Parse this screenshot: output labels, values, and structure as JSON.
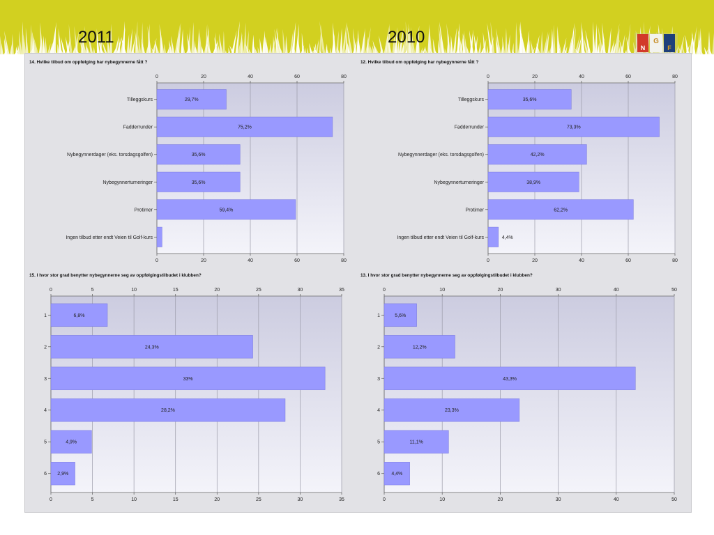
{
  "header": {
    "year_left": "2011",
    "year_right": "2010",
    "logo_letters": [
      "N",
      "G",
      "F"
    ]
  },
  "colors": {
    "banner": "#d2d020",
    "panel_bg": "#e2e2e6",
    "plot_top": "#cccce0",
    "plot_bottom": "#f4f4fa",
    "bar_fill": "#9999ff",
    "bar_stroke": "#7777dd",
    "grid": "#9a9aa8"
  },
  "chart_data": [
    {
      "type": "bar",
      "orientation": "horizontal",
      "title": "14. Hvilke tilbud om oppfølging har nybegynnerne fått ?",
      "categories": [
        "Tilleggskurs",
        "Fadderrunder",
        "Nybegynnerdager (eks. torsdagsgolfen)",
        "Nybegynnerturneringer",
        "Protimer",
        "Ingen tilbud etter endt Veien til Golf-kurs"
      ],
      "values": [
        29.7,
        75.2,
        35.6,
        35.6,
        59.4,
        2.2
      ],
      "labels": [
        "29,7%",
        "75,2%",
        "35,6%",
        "35,6%",
        "59,4%",
        ""
      ],
      "xlim": [
        0,
        80
      ],
      "ticks": [
        0,
        20,
        40,
        60,
        80
      ],
      "grid": true
    },
    {
      "type": "bar",
      "orientation": "horizontal",
      "title": "12. Hvilke tilbud om oppfølging har nybegynnerne fått ?",
      "categories": [
        "Tilleggskurs",
        "Fadderrunder",
        "Nybegynnerdager (eks. torsdagsgolfen)",
        "Nybegynnerturneringer",
        "Protimer",
        "Ingen tilbud etter endt Veien til Golf-kurs"
      ],
      "values": [
        35.6,
        73.3,
        42.2,
        38.9,
        62.2,
        4.4
      ],
      "labels": [
        "35,6%",
        "73,3%",
        "42,2%",
        "38,9%",
        "62,2%",
        "4,4%"
      ],
      "xlim": [
        0,
        80
      ],
      "ticks": [
        0,
        20,
        40,
        60,
        80
      ],
      "grid": true
    },
    {
      "type": "bar",
      "orientation": "horizontal",
      "title": "15. I hvor stor grad benytter nybegynnerne seg av oppfølgingstilbudet i klubben?",
      "categories": [
        "1",
        "2",
        "3",
        "4",
        "5",
        "6"
      ],
      "values": [
        6.8,
        24.3,
        33,
        28.2,
        4.9,
        2.9
      ],
      "labels": [
        "6,8%",
        "24,3%",
        "33%",
        "28,2%",
        "4,9%",
        "2,9%"
      ],
      "xlim": [
        0,
        35
      ],
      "ticks": [
        0,
        5,
        10,
        15,
        20,
        25,
        30,
        35
      ],
      "grid": true
    },
    {
      "type": "bar",
      "orientation": "horizontal",
      "title": "13. I hvor stor grad benytter nybegynnerne seg av oppfølgingstilbudet i klubben?",
      "categories": [
        "1",
        "2",
        "3",
        "4",
        "5",
        "6"
      ],
      "values": [
        5.6,
        12.2,
        43.3,
        23.3,
        11.1,
        4.4
      ],
      "labels": [
        "5,6%",
        "12,2%",
        "43,3%",
        "23,3%",
        "11,1%",
        "4,4%"
      ],
      "xlim": [
        0,
        50
      ],
      "ticks": [
        0,
        10,
        20,
        30,
        40,
        50
      ],
      "grid": true
    }
  ]
}
